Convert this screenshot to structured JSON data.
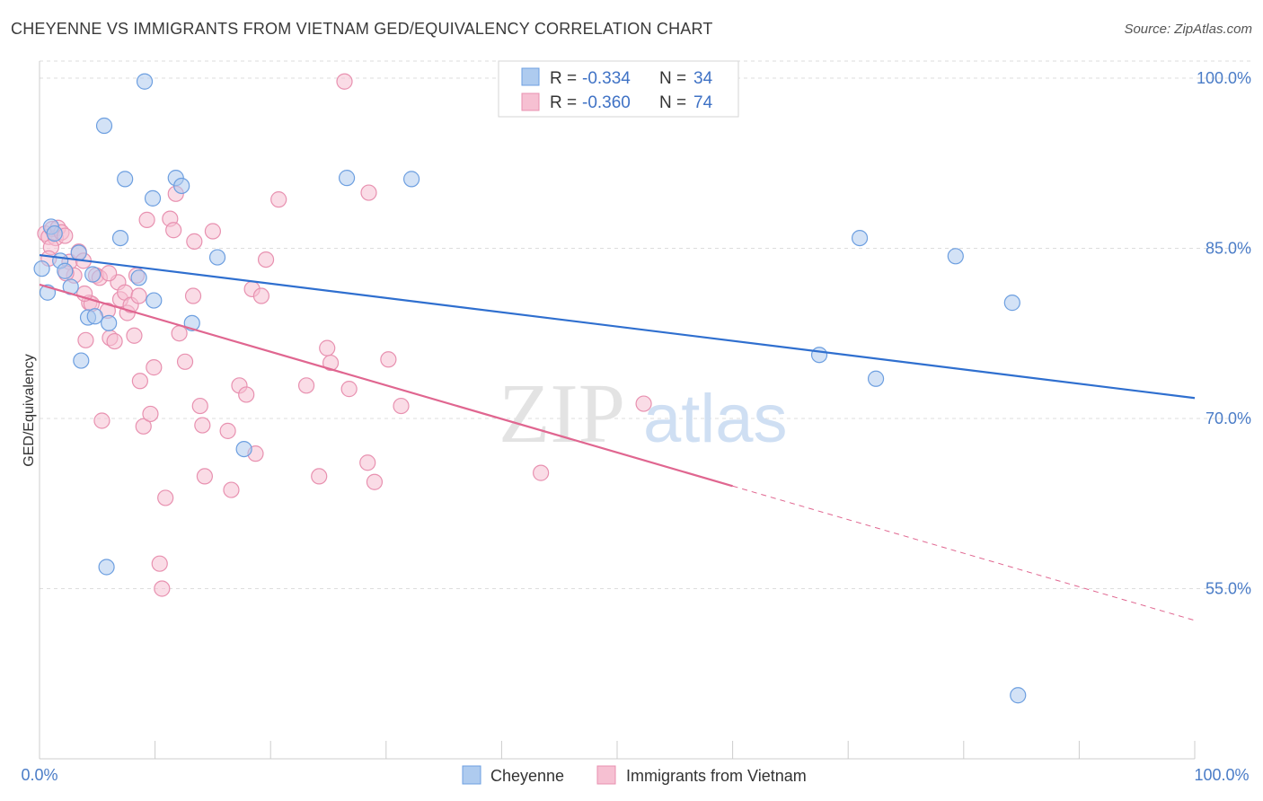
{
  "header": {
    "title": "CHEYENNE VS IMMIGRANTS FROM VIETNAM GED/EQUIVALENCY CORRELATION CHART",
    "source": "Source: ZipAtlas.com"
  },
  "watermark": {
    "zip": "ZIP",
    "atlas": "atlas"
  },
  "legend": {
    "r_label": "R =",
    "n_label": "N =",
    "entries": [
      {
        "r": "-0.334",
        "n": "34"
      },
      {
        "r": "-0.360",
        "n": "74"
      }
    ]
  },
  "bottom_legend": [
    "Cheyenne",
    "Immigrants from Vietnam"
  ],
  "colors": {
    "cheyenne_fill": "#aecbef",
    "cheyenne_stroke": "#6d9fe0",
    "cheyenne_line": "#2f6fcf",
    "vietnam_fill": "#f6c0d2",
    "vietnam_stroke": "#e891b0",
    "vietnam_line": "#e06690",
    "tick_text": "#4a7cc7",
    "grid": "#dddddd"
  },
  "chart_data": {
    "type": "scatter",
    "title": "CHEYENNE VS IMMIGRANTS FROM VIETNAM GED/EQUIVALENCY CORRELATION CHART",
    "xlabel": "",
    "ylabel": "GED/Equivalency",
    "xlim": [
      0,
      100
    ],
    "ylim": [
      40,
      101.5
    ],
    "x_tick_labels": [
      "0.0%",
      "100.0%"
    ],
    "y_ticks": [
      55,
      70,
      85,
      100
    ],
    "y_tick_labels": [
      "55.0%",
      "70.0%",
      "85.0%",
      "100.0%"
    ],
    "grid": true,
    "legend_position": "top-center",
    "series": [
      {
        "name": "Cheyenne",
        "r": -0.334,
        "n": 34,
        "trend": {
          "x": [
            0,
            100
          ],
          "y": [
            84.4,
            71.8
          ],
          "dashed_from": null
        },
        "points": [
          [
            0.2,
            83.2
          ],
          [
            0.7,
            81.1
          ],
          [
            1.0,
            86.9
          ],
          [
            1.3,
            86.3
          ],
          [
            1.8,
            83.9
          ],
          [
            2.2,
            83.0
          ],
          [
            2.7,
            81.6
          ],
          [
            3.4,
            84.6
          ],
          [
            3.6,
            75.1
          ],
          [
            4.2,
            78.9
          ],
          [
            4.6,
            82.7
          ],
          [
            4.8,
            79.0
          ],
          [
            5.6,
            95.8
          ],
          [
            6.0,
            78.4
          ],
          [
            5.8,
            56.9
          ],
          [
            7.0,
            85.9
          ],
          [
            7.4,
            91.1
          ],
          [
            8.6,
            82.4
          ],
          [
            9.1,
            99.7
          ],
          [
            9.8,
            89.4
          ],
          [
            9.9,
            80.4
          ],
          [
            11.8,
            91.2
          ],
          [
            12.3,
            90.5
          ],
          [
            13.2,
            78.4
          ],
          [
            15.4,
            84.2
          ],
          [
            17.7,
            67.3
          ],
          [
            26.6,
            91.2
          ],
          [
            32.2,
            91.1
          ],
          [
            71.0,
            85.9
          ],
          [
            67.5,
            75.6
          ],
          [
            72.4,
            73.5
          ],
          [
            79.3,
            84.3
          ],
          [
            84.7,
            45.6
          ],
          [
            84.2,
            80.2
          ]
        ]
      },
      {
        "name": "Immigrants from Vietnam",
        "r": -0.36,
        "n": 74,
        "trend": {
          "x": [
            0,
            100
          ],
          "y": [
            81.8,
            52.2
          ],
          "dashed_from": 60
        },
        "points": [
          [
            0.5,
            86.3
          ],
          [
            0.8,
            86.0
          ],
          [
            1.1,
            86.7
          ],
          [
            1.4,
            85.9
          ],
          [
            1.6,
            86.8
          ],
          [
            1.9,
            86.4
          ],
          [
            2.2,
            86.1
          ],
          [
            1.0,
            85.1
          ],
          [
            0.8,
            84.1
          ],
          [
            2.6,
            83.8
          ],
          [
            3.0,
            82.6
          ],
          [
            3.4,
            84.7
          ],
          [
            3.8,
            83.9
          ],
          [
            4.0,
            76.9
          ],
          [
            4.3,
            80.2
          ],
          [
            4.5,
            80.1
          ],
          [
            4.9,
            82.6
          ],
          [
            5.2,
            82.4
          ],
          [
            5.4,
            69.8
          ],
          [
            5.9,
            79.5
          ],
          [
            6.1,
            77.1
          ],
          [
            6.5,
            76.8
          ],
          [
            6.8,
            82.0
          ],
          [
            7.0,
            80.5
          ],
          [
            7.4,
            81.1
          ],
          [
            7.6,
            79.3
          ],
          [
            7.9,
            80.0
          ],
          [
            8.2,
            77.3
          ],
          [
            8.4,
            82.6
          ],
          [
            8.6,
            80.8
          ],
          [
            8.7,
            73.3
          ],
          [
            9.0,
            69.3
          ],
          [
            9.3,
            87.5
          ],
          [
            9.6,
            70.4
          ],
          [
            9.9,
            74.5
          ],
          [
            10.4,
            57.2
          ],
          [
            10.6,
            55.0
          ],
          [
            10.9,
            63.0
          ],
          [
            11.3,
            87.6
          ],
          [
            11.6,
            86.6
          ],
          [
            11.8,
            89.8
          ],
          [
            12.1,
            77.5
          ],
          [
            12.6,
            75.0
          ],
          [
            13.4,
            85.6
          ],
          [
            13.3,
            80.8
          ],
          [
            13.9,
            71.1
          ],
          [
            14.1,
            69.4
          ],
          [
            14.3,
            64.9
          ],
          [
            15.0,
            86.5
          ],
          [
            16.3,
            68.9
          ],
          [
            16.6,
            63.7
          ],
          [
            17.3,
            72.9
          ],
          [
            17.9,
            72.1
          ],
          [
            18.4,
            81.4
          ],
          [
            18.7,
            66.9
          ],
          [
            19.2,
            80.8
          ],
          [
            19.6,
            84.0
          ],
          [
            20.7,
            89.3
          ],
          [
            23.1,
            72.9
          ],
          [
            24.2,
            64.9
          ],
          [
            24.9,
            76.2
          ],
          [
            25.2,
            74.9
          ],
          [
            26.4,
            99.7
          ],
          [
            26.8,
            72.6
          ],
          [
            28.4,
            66.1
          ],
          [
            28.5,
            89.9
          ],
          [
            29.0,
            64.4
          ],
          [
            30.2,
            75.2
          ],
          [
            31.3,
            71.1
          ],
          [
            43.4,
            65.2
          ],
          [
            52.3,
            71.3
          ],
          [
            2.3,
            82.8
          ],
          [
            6.0,
            82.8
          ],
          [
            3.9,
            81.0
          ]
        ]
      }
    ]
  }
}
